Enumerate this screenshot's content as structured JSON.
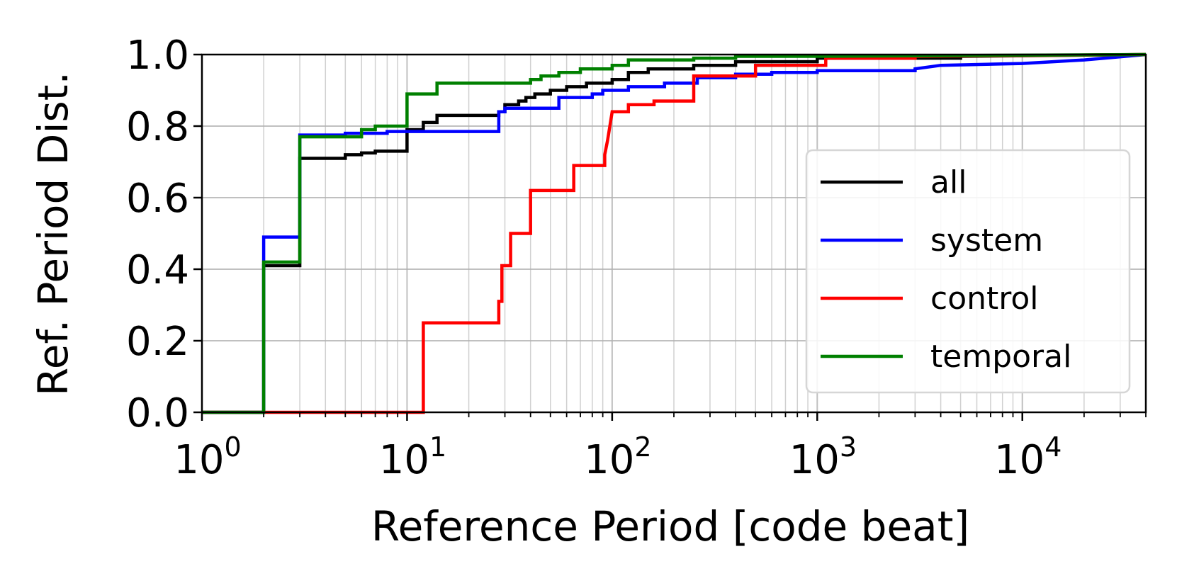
{
  "chart_data": {
    "type": "line",
    "xlabel": "Reference Period [code beat]",
    "ylabel": "Ref. Period Dist.",
    "xscale": "log",
    "xlim": [
      1,
      40000
    ],
    "ylim": [
      0,
      1
    ],
    "grid": true,
    "legend_position": "center-right",
    "x_ticks": [
      {
        "base": "10",
        "exp": "0",
        "value": 1
      },
      {
        "base": "10",
        "exp": "1",
        "value": 10
      },
      {
        "base": "10",
        "exp": "2",
        "value": 100
      },
      {
        "base": "10",
        "exp": "3",
        "value": 1000
      },
      {
        "base": "10",
        "exp": "4",
        "value": 10000
      }
    ],
    "y_ticks": [
      {
        "label": "0.0",
        "value": 0
      },
      {
        "label": "0.2",
        "value": 0.2
      },
      {
        "label": "0.4",
        "value": 0.4
      },
      {
        "label": "0.6",
        "value": 0.6
      },
      {
        "label": "0.8",
        "value": 0.8
      },
      {
        "label": "1.0",
        "value": 1.0
      }
    ],
    "series": [
      {
        "name": "all",
        "color": "#000000",
        "points": [
          [
            1,
            0
          ],
          [
            2,
            0
          ],
          [
            2,
            0.41
          ],
          [
            3,
            0.41
          ],
          [
            3,
            0.71
          ],
          [
            5,
            0.71
          ],
          [
            5,
            0.72
          ],
          [
            6,
            0.72
          ],
          [
            6,
            0.725
          ],
          [
            7,
            0.725
          ],
          [
            7,
            0.73
          ],
          [
            10,
            0.73
          ],
          [
            10,
            0.79
          ],
          [
            12,
            0.79
          ],
          [
            12,
            0.81
          ],
          [
            14,
            0.81
          ],
          [
            14,
            0.83
          ],
          [
            28,
            0.83
          ],
          [
            28,
            0.84
          ],
          [
            30,
            0.84
          ],
          [
            30,
            0.86
          ],
          [
            35,
            0.86
          ],
          [
            35,
            0.87
          ],
          [
            38,
            0.87
          ],
          [
            38,
            0.88
          ],
          [
            42,
            0.88
          ],
          [
            42,
            0.89
          ],
          [
            50,
            0.89
          ],
          [
            50,
            0.9
          ],
          [
            60,
            0.9
          ],
          [
            60,
            0.91
          ],
          [
            75,
            0.91
          ],
          [
            75,
            0.92
          ],
          [
            100,
            0.92
          ],
          [
            100,
            0.93
          ],
          [
            120,
            0.93
          ],
          [
            120,
            0.95
          ],
          [
            150,
            0.95
          ],
          [
            150,
            0.96
          ],
          [
            250,
            0.96
          ],
          [
            250,
            0.97
          ],
          [
            400,
            0.97
          ],
          [
            400,
            0.98
          ],
          [
            1000,
            0.98
          ],
          [
            1000,
            0.99
          ],
          [
            5000,
            0.99
          ],
          [
            5000,
            0.995
          ],
          [
            40000,
            1.0
          ]
        ]
      },
      {
        "name": "system",
        "color": "#0000ff",
        "points": [
          [
            1,
            0
          ],
          [
            2,
            0
          ],
          [
            2,
            0.49
          ],
          [
            3,
            0.49
          ],
          [
            3,
            0.775
          ],
          [
            5,
            0.775
          ],
          [
            5,
            0.78
          ],
          [
            8,
            0.78
          ],
          [
            8,
            0.785
          ],
          [
            28,
            0.785
          ],
          [
            28,
            0.84
          ],
          [
            30,
            0.84
          ],
          [
            30,
            0.85
          ],
          [
            55,
            0.85
          ],
          [
            55,
            0.88
          ],
          [
            80,
            0.88
          ],
          [
            80,
            0.89
          ],
          [
            90,
            0.89
          ],
          [
            90,
            0.9
          ],
          [
            120,
            0.9
          ],
          [
            120,
            0.91
          ],
          [
            180,
            0.91
          ],
          [
            180,
            0.92
          ],
          [
            260,
            0.92
          ],
          [
            260,
            0.935
          ],
          [
            400,
            0.935
          ],
          [
            400,
            0.945
          ],
          [
            600,
            0.945
          ],
          [
            600,
            0.95
          ],
          [
            1000,
            0.95
          ],
          [
            1000,
            0.955
          ],
          [
            3000,
            0.955
          ],
          [
            3000,
            0.96
          ],
          [
            4000,
            0.97
          ],
          [
            10000,
            0.975
          ],
          [
            20000,
            0.985
          ],
          [
            40000,
            1.0
          ]
        ]
      },
      {
        "name": "control",
        "color": "#ff0000",
        "points": [
          [
            1,
            0
          ],
          [
            12,
            0
          ],
          [
            12,
            0.25
          ],
          [
            28,
            0.25
          ],
          [
            28,
            0.31
          ],
          [
            29,
            0.31
          ],
          [
            29,
            0.41
          ],
          [
            32,
            0.41
          ],
          [
            32,
            0.5
          ],
          [
            40,
            0.5
          ],
          [
            40,
            0.62
          ],
          [
            65,
            0.62
          ],
          [
            65,
            0.69
          ],
          [
            92,
            0.69
          ],
          [
            92,
            0.72
          ],
          [
            95,
            0.76
          ],
          [
            100,
            0.84
          ],
          [
            120,
            0.84
          ],
          [
            120,
            0.86
          ],
          [
            160,
            0.86
          ],
          [
            160,
            0.87
          ],
          [
            250,
            0.87
          ],
          [
            250,
            0.94
          ],
          [
            500,
            0.94
          ],
          [
            500,
            0.97
          ],
          [
            1100,
            0.97
          ],
          [
            1100,
            0.99
          ],
          [
            3000,
            0.99
          ],
          [
            3000,
            0.995
          ],
          [
            40000,
            1.0
          ]
        ]
      },
      {
        "name": "temporal",
        "color": "#008000",
        "points": [
          [
            1,
            0
          ],
          [
            2,
            0
          ],
          [
            2,
            0.42
          ],
          [
            3,
            0.42
          ],
          [
            3,
            0.77
          ],
          [
            6,
            0.77
          ],
          [
            6,
            0.79
          ],
          [
            7,
            0.79
          ],
          [
            7,
            0.8
          ],
          [
            10,
            0.8
          ],
          [
            10,
            0.89
          ],
          [
            14,
            0.89
          ],
          [
            14,
            0.92
          ],
          [
            40,
            0.92
          ],
          [
            40,
            0.93
          ],
          [
            45,
            0.93
          ],
          [
            45,
            0.94
          ],
          [
            55,
            0.94
          ],
          [
            55,
            0.95
          ],
          [
            70,
            0.95
          ],
          [
            70,
            0.96
          ],
          [
            100,
            0.96
          ],
          [
            100,
            0.97
          ],
          [
            120,
            0.97
          ],
          [
            120,
            0.985
          ],
          [
            250,
            0.985
          ],
          [
            250,
            0.99
          ],
          [
            400,
            0.99
          ],
          [
            400,
            0.995
          ],
          [
            1000,
            0.995
          ],
          [
            40000,
            1.0
          ]
        ]
      }
    ]
  }
}
